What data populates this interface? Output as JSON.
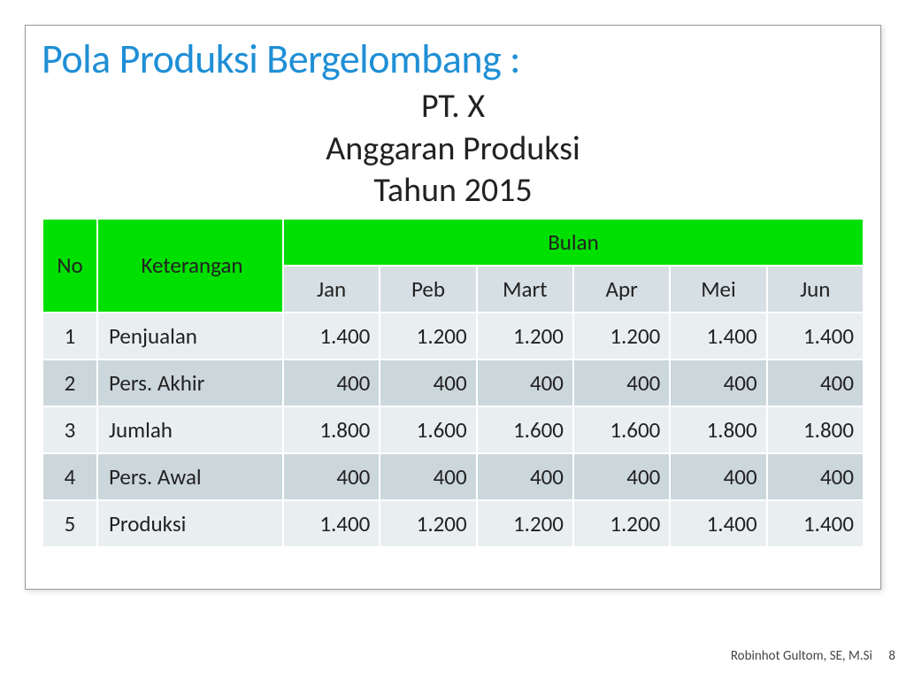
{
  "title": {
    "text": "Pola Produksi Bergelombang :",
    "color": "#1f8fd6"
  },
  "subtitle": {
    "line1": "PT. X",
    "line2": "Anggaran Produksi",
    "line3": "Tahun 2015"
  },
  "table": {
    "header_bg": "#00e000",
    "subheader_bg": "#d6e0e4",
    "row_odd_bg": "#e9eef1",
    "row_even_bg": "#ccd7dc",
    "border_color": "#ffffff",
    "columns": {
      "no": "No",
      "keterangan": "Keterangan",
      "bulan": "Bulan"
    },
    "months": [
      "Jan",
      "Peb",
      "Mart",
      "Apr",
      "Mei",
      "Jun"
    ],
    "rows": [
      {
        "no": "1",
        "ket": "Penjualan",
        "vals": [
          "1.400",
          "1.200",
          "1.200",
          "1.200",
          "1.400",
          "1.400"
        ]
      },
      {
        "no": "2",
        "ket": "Pers. Akhir",
        "vals": [
          "400",
          "400",
          "400",
          "400",
          "400",
          "400"
        ]
      },
      {
        "no": "3",
        "ket": "Jumlah",
        "vals": [
          "1.800",
          "1.600",
          "1.600",
          "1.600",
          "1.800",
          "1.800"
        ]
      },
      {
        "no": "4",
        "ket": "Pers. Awal",
        "vals": [
          "400",
          "400",
          "400",
          "400",
          "400",
          "400"
        ]
      },
      {
        "no": "5",
        "ket": "Produksi",
        "vals": [
          "1.400",
          "1.200",
          "1.200",
          "1.200",
          "1.400",
          "1.400"
        ]
      }
    ]
  },
  "footer": {
    "author": "Robinhot Gultom, SE, M.Si",
    "page": "8"
  }
}
